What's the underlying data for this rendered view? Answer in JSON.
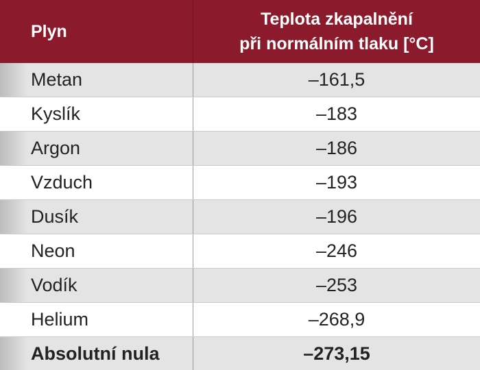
{
  "header": {
    "gas_label": "Plyn",
    "temp_label_line1": "Teplota zkapalnění",
    "temp_label_line2": "při normálním tlaku [°C]"
  },
  "rows": [
    {
      "gas": "Metan",
      "temp": "–161,5"
    },
    {
      "gas": "Kyslík",
      "temp": "–183"
    },
    {
      "gas": "Argon",
      "temp": "–186"
    },
    {
      "gas": "Vzduch",
      "temp": "–193"
    },
    {
      "gas": "Dusík",
      "temp": "–196"
    },
    {
      "gas": "Neon",
      "temp": "–246"
    },
    {
      "gas": "Vodík",
      "temp": "–253"
    },
    {
      "gas": "Helium",
      "temp": "–268,9"
    },
    {
      "gas": "Absolutní nula",
      "temp": "–273,15"
    }
  ],
  "colors": {
    "header_bg": "#8b1a2c",
    "alt_row_bg": "#e4e4e4"
  }
}
